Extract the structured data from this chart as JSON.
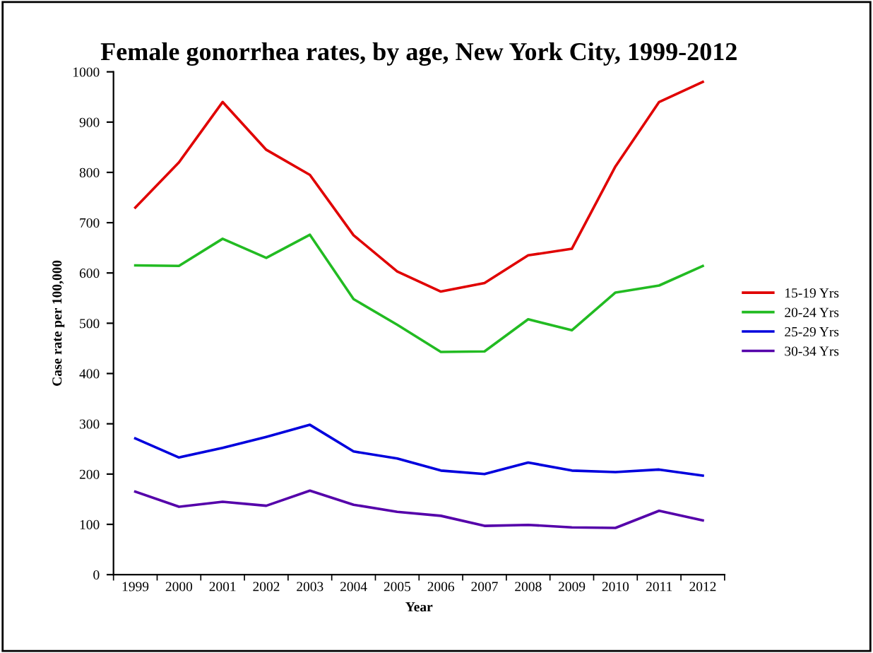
{
  "chart_data": {
    "type": "line",
    "title": "Female gonorrhea rates, by age, New York City, 1999-2012",
    "xlabel": "Year",
    "ylabel": "Case rate per 100,000",
    "categories": [
      "1999",
      "2000",
      "2001",
      "2002",
      "2003",
      "2004",
      "2005",
      "2006",
      "2007",
      "2008",
      "2009",
      "2010",
      "2011",
      "2012"
    ],
    "series": [
      {
        "name": "15-19 Yrs",
        "color": "#e00000",
        "values": [
          730,
          820,
          940,
          845,
          795,
          675,
          603,
          563,
          580,
          635,
          648,
          812,
          940,
          980
        ]
      },
      {
        "name": "20-24 Yrs",
        "color": "#22bb22",
        "values": [
          615,
          614,
          668,
          630,
          676,
          548,
          497,
          443,
          444,
          508,
          486,
          561,
          575,
          614
        ]
      },
      {
        "name": "25-29 Yrs",
        "color": "#0000dd",
        "values": [
          271,
          233,
          252,
          274,
          298,
          245,
          231,
          207,
          200,
          223,
          207,
          204,
          209,
          197
        ]
      },
      {
        "name": "30-34 Yrs",
        "color": "#5500aa",
        "values": [
          165,
          135,
          145,
          137,
          167,
          139,
          125,
          117,
          97,
          99,
          94,
          93,
          127,
          108
        ]
      }
    ],
    "ylim": [
      0,
      1000
    ],
    "yticks": [
      0,
      100,
      200,
      300,
      400,
      500,
      600,
      700,
      800,
      900,
      1000
    ],
    "grid": false,
    "legend": "right",
    "marker": "none",
    "line_style": "solid"
  }
}
